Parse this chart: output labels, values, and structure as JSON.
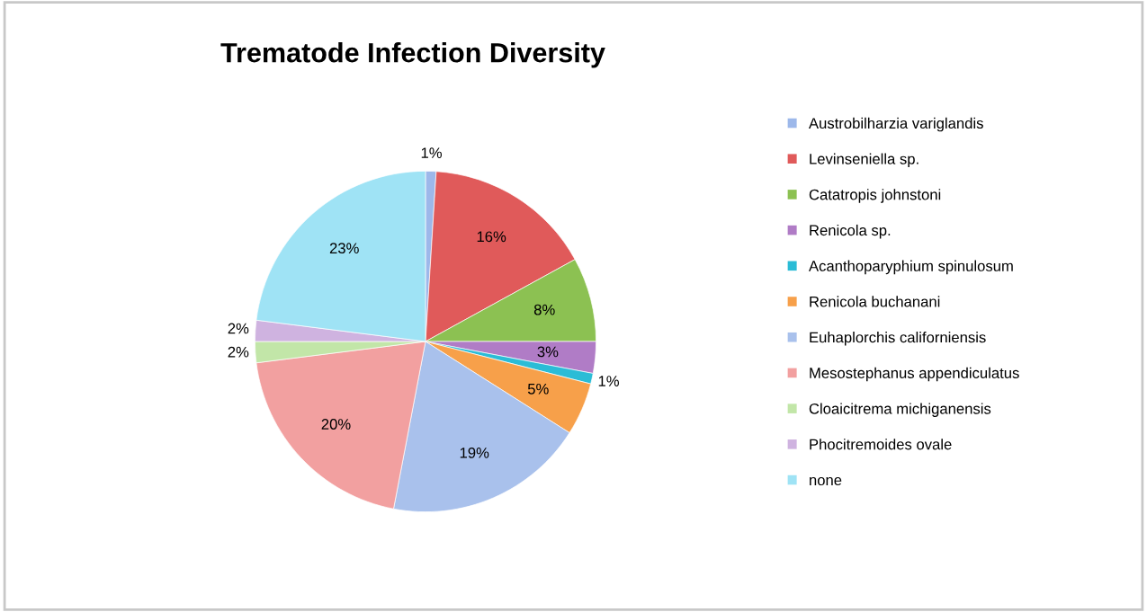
{
  "chart_data": {
    "type": "pie",
    "title": "Trematode Infection Diversity",
    "categories": [
      "Austrobilharzia variglandis",
      "Levinseniella sp.",
      "Catatropis johnstoni",
      "Renicola sp.",
      "Acanthoparyphium spinulosum",
      "Renicola buchanani",
      "Euhaplorchis californiensis",
      "Mesostephanus appendiculatus",
      "Cloaicitrema michiganensis",
      "Phocitremoides ovale",
      "none"
    ],
    "values": [
      1,
      16,
      8,
      3,
      1,
      5,
      19,
      20,
      2,
      2,
      23
    ],
    "colors": [
      "#9db8ea",
      "#e05a5a",
      "#8cc152",
      "#b07cc6",
      "#2bbcd6",
      "#f7a04a",
      "#a9c1ec",
      "#f2a0a0",
      "#c2e6a8",
      "#cfb3e0",
      "#9fe3f5"
    ],
    "value_labels": [
      "1%",
      "16%",
      "8%",
      "3%",
      "1%",
      "5%",
      "19%",
      "20%",
      "2%",
      "2%",
      "23%"
    ],
    "legend": "right"
  }
}
